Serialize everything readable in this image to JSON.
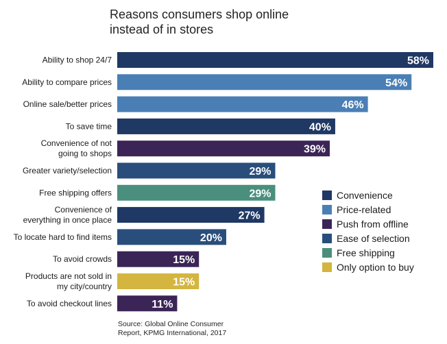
{
  "chart_data": {
    "type": "bar",
    "orientation": "horizontal",
    "title": [
      "Reasons consumers shop online",
      "instead of in stores"
    ],
    "categories": [
      [
        "Ability to shop 24/7"
      ],
      [
        "Ability to compare prices"
      ],
      [
        "Online sale/better prices"
      ],
      [
        "To save time"
      ],
      [
        "Convenience of not",
        "going to shops"
      ],
      [
        "Greater variety/selection"
      ],
      [
        "Free shipping offers"
      ],
      [
        "Convenience of",
        "everything in once place"
      ],
      [
        "To locate hard to find items"
      ],
      [
        "To avoid crowds"
      ],
      [
        "Products are not sold in",
        "my city/country"
      ],
      [
        "To avoid checkout lines"
      ]
    ],
    "values": [
      58,
      54,
      46,
      40,
      39,
      29,
      29,
      27,
      20,
      15,
      15,
      11
    ],
    "value_labels": [
      "58%",
      "54%",
      "46%",
      "40%",
      "39%",
      "29%",
      "29%",
      "27%",
      "20%",
      "15%",
      "15%",
      "11%"
    ],
    "groups": [
      "Convenience",
      "Price-related",
      "Price-related",
      "Convenience",
      "Push from offline",
      "Ease of selection",
      "Free shipping",
      "Convenience",
      "Ease of selection",
      "Push from offline",
      "Only option to buy",
      "Push from offline"
    ],
    "legend": [
      {
        "name": "Convenience",
        "color": "#1f3864"
      },
      {
        "name": "Price-related",
        "color": "#4a7fb5"
      },
      {
        "name": "Push from offline",
        "color": "#3b2556"
      },
      {
        "name": "Ease of selection",
        "color": "#2a4e7c"
      },
      {
        "name": "Free shipping",
        "color": "#4a8f7d"
      },
      {
        "name": "Only option to buy",
        "color": "#d3b53f"
      }
    ],
    "xlim": [
      0,
      58
    ],
    "legend_position": "right",
    "grid": false
  },
  "source": [
    "Source: Global Online Consumer",
    "Report, KPMG International, 2017"
  ]
}
